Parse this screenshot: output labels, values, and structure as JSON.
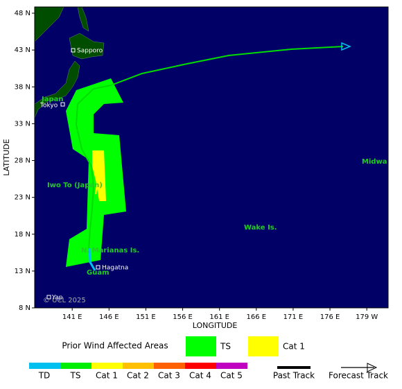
{
  "map": {
    "y_axis_title": "LATITUDE",
    "x_axis_title": "LONGITUDE",
    "lat_range": [
      8,
      48.85
    ],
    "lon_range": [
      135.9,
      183.9
    ],
    "lat_ticks": [
      {
        "value": 48,
        "label": "48 N"
      },
      {
        "value": 43,
        "label": "43 N"
      },
      {
        "value": 38,
        "label": "38 N"
      },
      {
        "value": 33,
        "label": "33 N"
      },
      {
        "value": 28,
        "label": "28 N"
      },
      {
        "value": 23,
        "label": "23 N"
      },
      {
        "value": 18,
        "label": "18 N"
      },
      {
        "value": 13,
        "label": "13 N"
      },
      {
        "value": 8,
        "label": "8 N"
      }
    ],
    "lon_ticks": [
      {
        "value": 141,
        "label": "141 E"
      },
      {
        "value": 146,
        "label": "146 E"
      },
      {
        "value": 151,
        "label": "151 E"
      },
      {
        "value": 156,
        "label": "156 E"
      },
      {
        "value": 161,
        "label": "161 E"
      },
      {
        "value": 166,
        "label": "166 E"
      },
      {
        "value": 171,
        "label": "171 E"
      },
      {
        "value": 176,
        "label": "176 E"
      },
      {
        "value": 181,
        "label": "179 W"
      }
    ],
    "places": [
      "Sapporo",
      "Japan",
      "Tokyo",
      "Iwo To (Japan)",
      "N. Marianas Is.",
      "Hagatna",
      "Guam",
      "Wake Is.",
      "Midwa",
      "Yap"
    ],
    "credit": "© UCL 2025"
  },
  "legend": {
    "wind_title": "Prior Wind Affected Areas",
    "wind_areas": [
      {
        "label": "TS",
        "color": "#00ff00"
      },
      {
        "label": "Cat 1",
        "color": "#ffff00"
      }
    ],
    "scale": [
      {
        "label": "TD",
        "color": "#00c0f0"
      },
      {
        "label": "TS",
        "color": "#00ee00"
      },
      {
        "label": "Cat 1",
        "color": "#ffff00"
      },
      {
        "label": "Cat 2",
        "color": "#ffc000"
      },
      {
        "label": "Cat 3",
        "color": "#ff6000"
      },
      {
        "label": "Cat 4",
        "color": "#ff0000"
      },
      {
        "label": "Cat 5",
        "color": "#c000c0"
      }
    ],
    "tracks": [
      "Past Track",
      "Forecast Track"
    ]
  }
}
